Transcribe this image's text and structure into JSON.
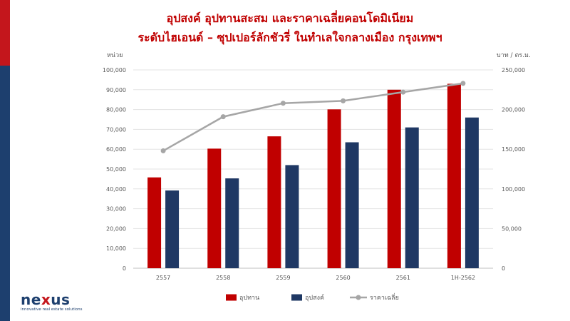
{
  "title_line1": "อุปสงค์ อุปทานสะสม  และราคาเฉลี่ยคอนโดมิเนียม",
  "title_line2": "ระดับไฮเอนด์ – ซุปเปอร์ลักชัวรี่ ในทำเลใจกลางเมือง กรุงเทพฯ",
  "chart_data": {
    "type": "bar",
    "categories": [
      "2557",
      "2558",
      "2559",
      "2560",
      "2561",
      "1H-2562"
    ],
    "series": [
      {
        "name": "อุปทาน",
        "type": "bar",
        "axis": "left",
        "color": "#c00000",
        "values": [
          45800,
          60300,
          66500,
          80100,
          90000,
          93000
        ]
      },
      {
        "name": "อุปสงค์",
        "type": "bar",
        "axis": "left",
        "color": "#1f3864",
        "values": [
          39200,
          45300,
          52000,
          63500,
          71000,
          76000
        ]
      },
      {
        "name": "ราคาเฉลี่ย",
        "type": "line",
        "axis": "right",
        "color": "#a6a6a6",
        "values": [
          148000,
          191000,
          208000,
          211000,
          222000,
          233000
        ]
      }
    ],
    "ylabel_left": "หน่วย",
    "ylabel_right": "บาท / ตร.ม.",
    "ylim_left": [
      0,
      100000
    ],
    "ylim_right": [
      0,
      250000
    ],
    "yticks_left": [
      "0",
      "10,000",
      "20,000",
      "30,000",
      "40,000",
      "50,000",
      "60,000",
      "70,000",
      "80,000",
      "90,000",
      "100,000"
    ],
    "yticks_right": [
      "0",
      "50,000",
      "100,000",
      "150,000",
      "200,000",
      "250,000"
    ],
    "grid": true,
    "legend_position": "bottom"
  },
  "logo": {
    "word_a": "ne",
    "word_x": "x",
    "word_b": "us",
    "tagline": "innovative real estate solutions"
  }
}
